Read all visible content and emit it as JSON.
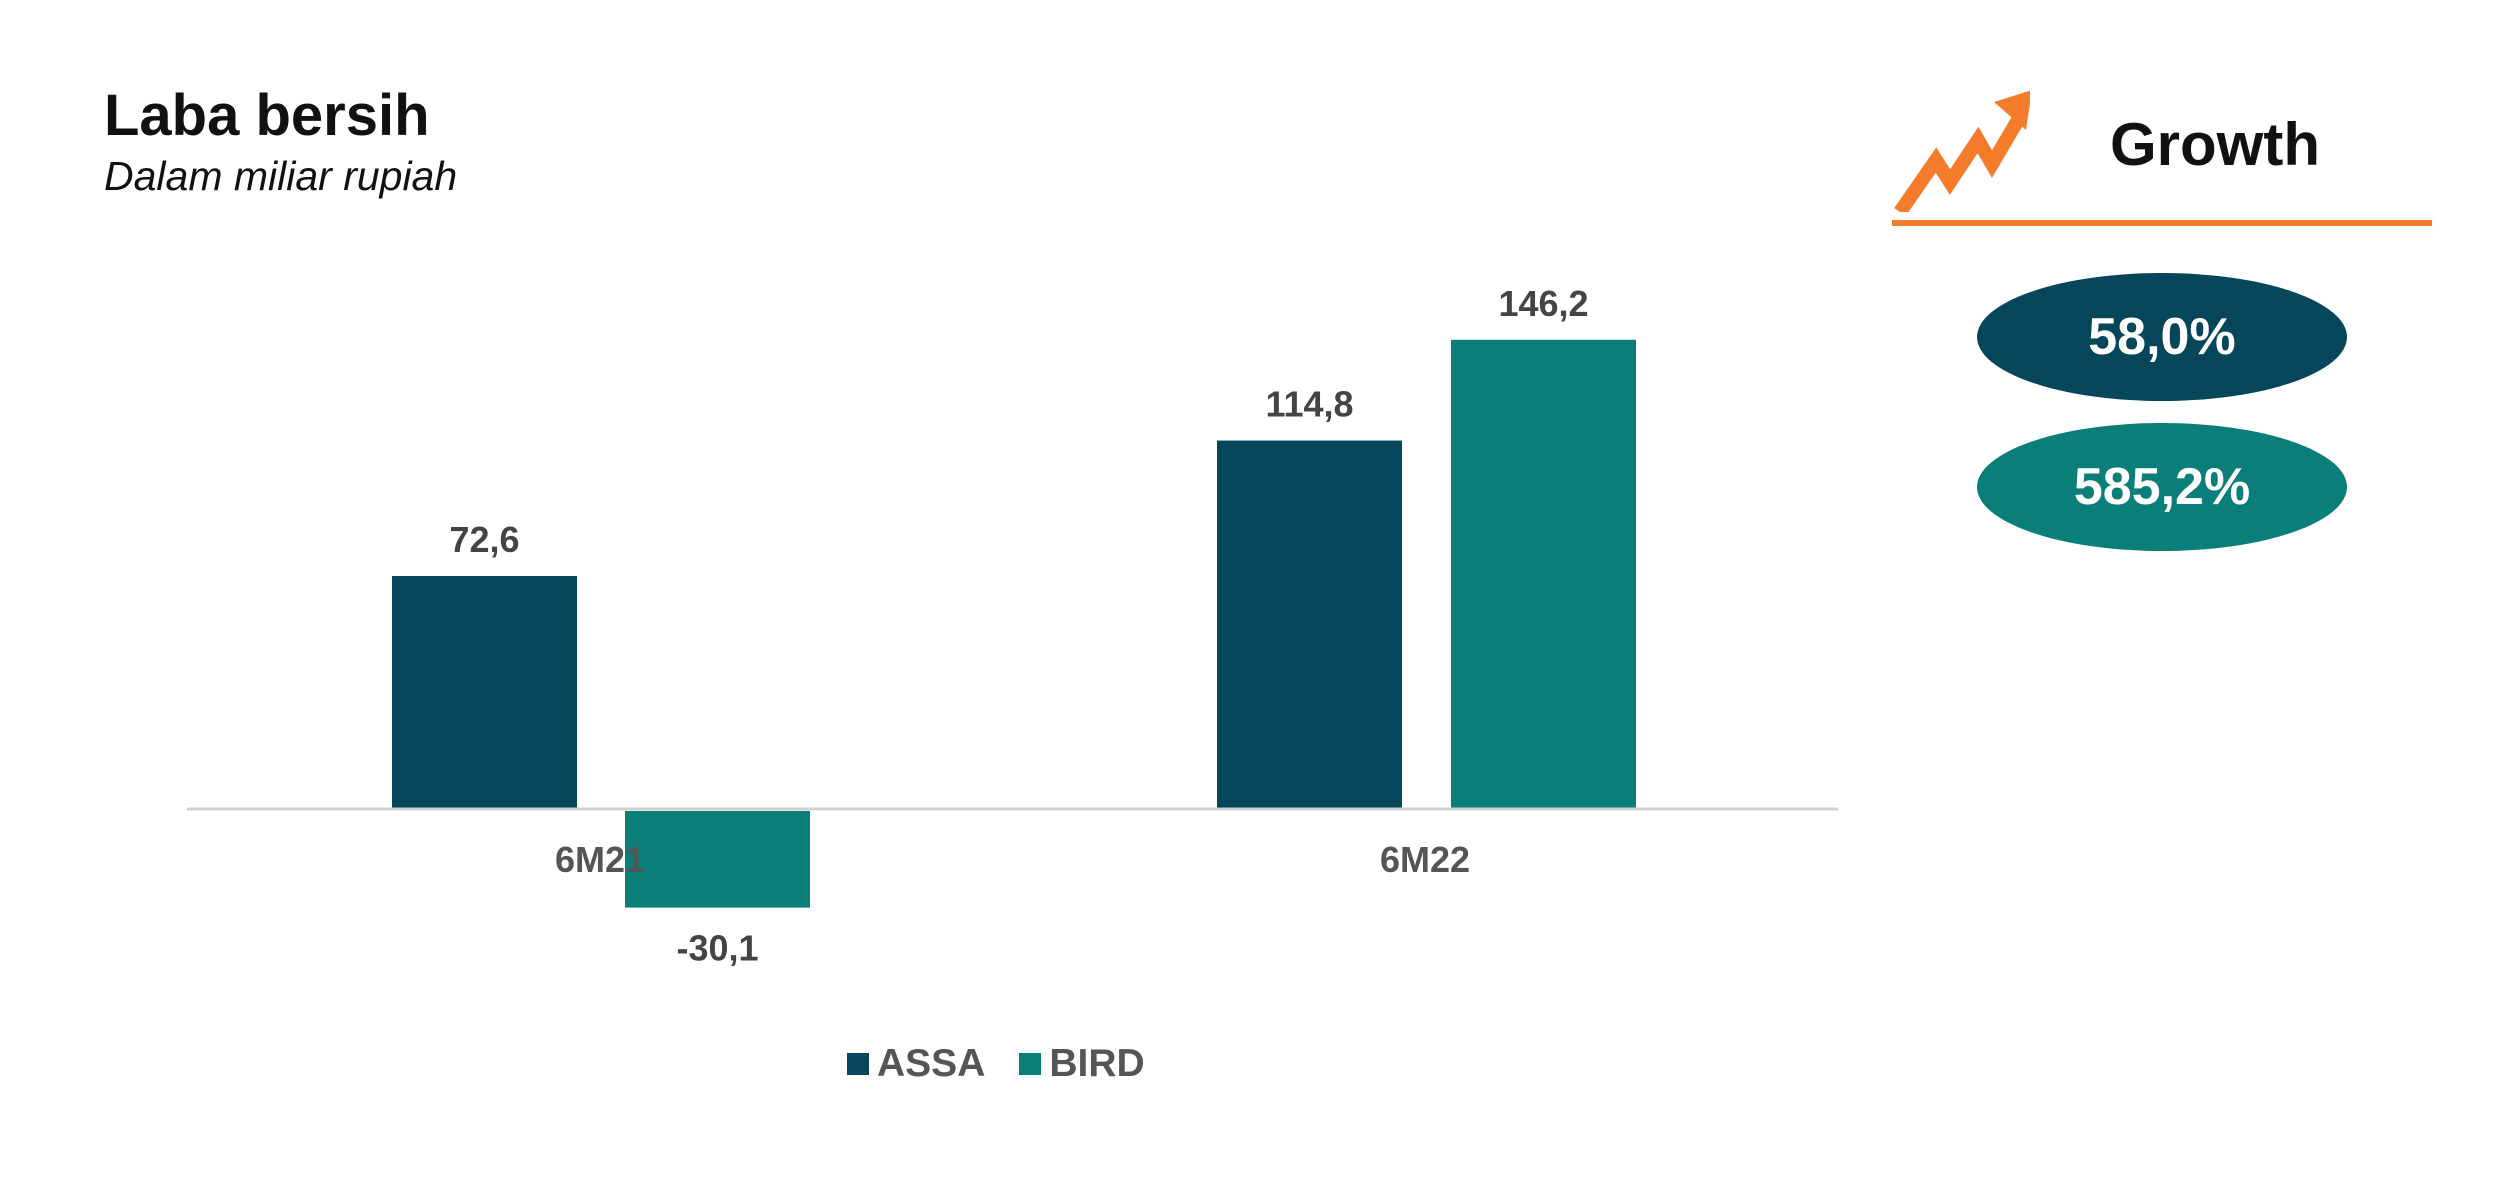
{
  "header": {
    "title": "Laba bersih",
    "subtitle": "Dalam miliar rupiah"
  },
  "colors": {
    "ASSA": "#05465a",
    "BIRD": "#0a7e78",
    "accent": "#f47c2a",
    "axis": "#d0d0d0"
  },
  "chart_data": {
    "type": "bar",
    "title": "Laba bersih",
    "subtitle": "Dalam miliar rupiah",
    "categories": [
      "6M21",
      "6M22"
    ],
    "series": [
      {
        "name": "ASSA",
        "values": [
          72.6,
          114.8
        ],
        "labels": [
          "72,6",
          "114,8"
        ]
      },
      {
        "name": "BIRD",
        "values": [
          -30.1,
          146.2
        ],
        "labels": [
          "-30,1",
          "146,2"
        ]
      }
    ],
    "xlabel": "",
    "ylabel": "",
    "ylim": [
      -50,
      160
    ],
    "grid": false,
    "legend_position": "bottom"
  },
  "legend": {
    "items": [
      {
        "name": "ASSA"
      },
      {
        "name": "BIRD"
      }
    ]
  },
  "growth": {
    "title": "Growth",
    "icon": "trend-up-arrow-icon",
    "values": [
      {
        "series": "ASSA",
        "label": "58,0%"
      },
      {
        "series": "BIRD",
        "label": "585,2%"
      }
    ]
  }
}
